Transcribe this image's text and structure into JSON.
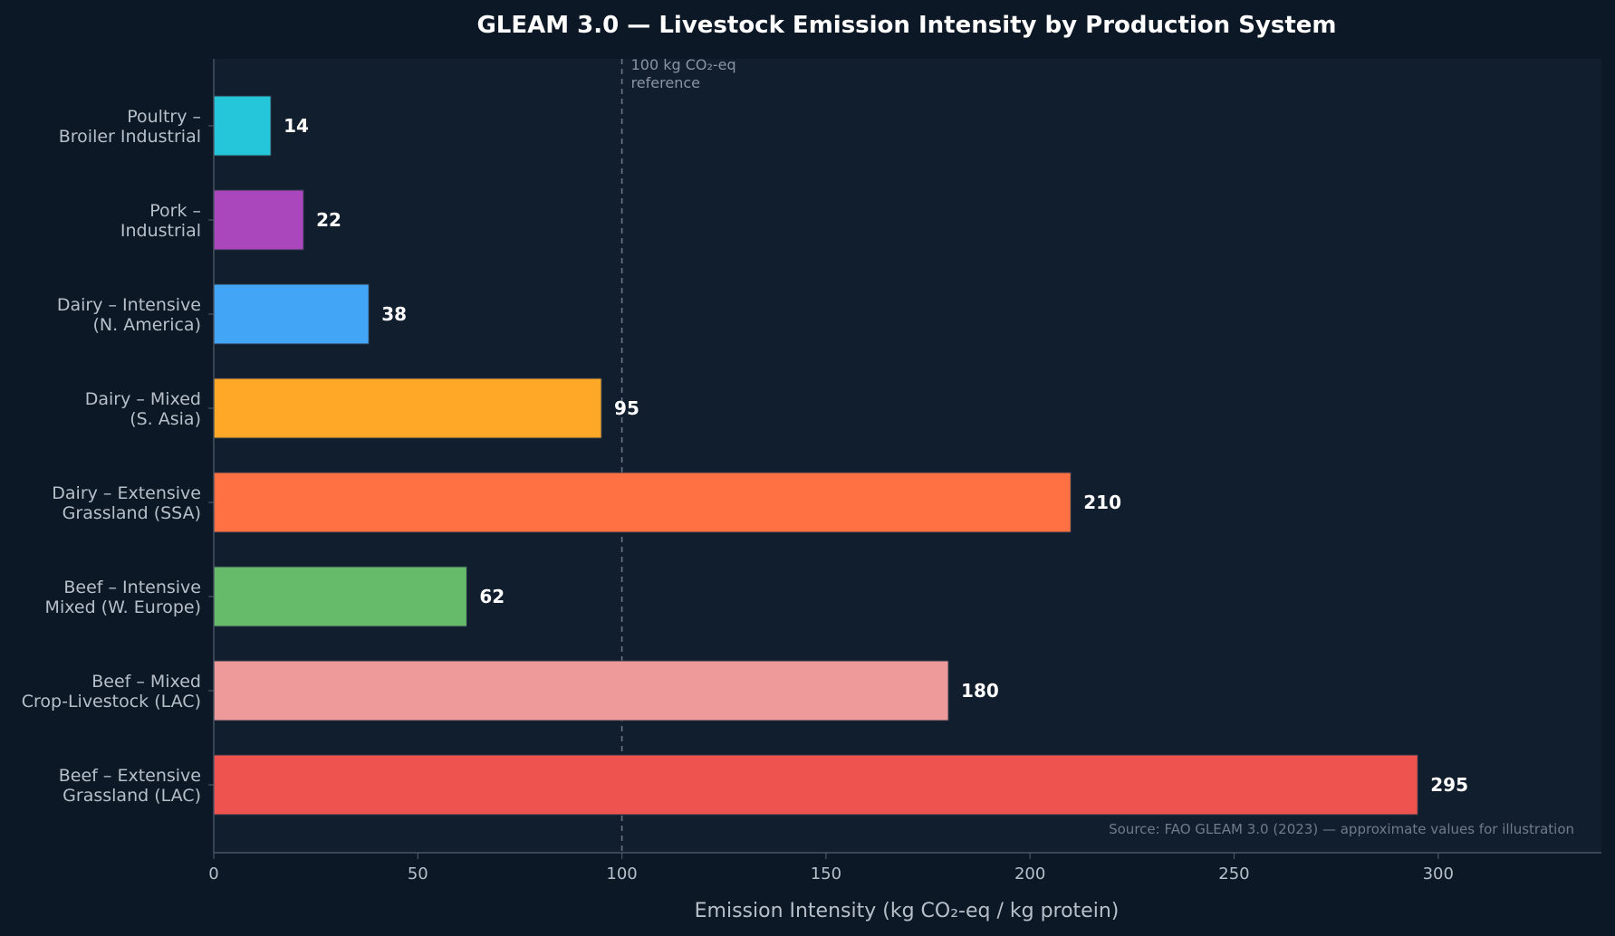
{
  "chart_data": {
    "type": "bar",
    "orientation": "horizontal",
    "title": "GLEAM 3.0 — Livestock Emission Intensity by Production System",
    "xlabel": "Emission Intensity (kg CO₂-eq / kg protein)",
    "ylabel": "",
    "xlim": [
      0,
      340
    ],
    "xticks": [
      0,
      50,
      100,
      150,
      200,
      250,
      300
    ],
    "grid": false,
    "categories": [
      [
        "Poultry –",
        "Broiler Industrial"
      ],
      [
        "Pork –",
        "Industrial"
      ],
      [
        "Dairy – Intensive",
        "(N. America)"
      ],
      [
        "Dairy – Mixed",
        "(S. Asia)"
      ],
      [
        "Dairy – Extensive",
        "Grassland (SSA)"
      ],
      [
        "Beef – Intensive",
        "Mixed (W. Europe)"
      ],
      [
        "Beef – Mixed",
        "Crop-Livestock (LAC)"
      ],
      [
        "Beef – Extensive",
        "Grassland (LAC)"
      ]
    ],
    "values": [
      14,
      22,
      38,
      95,
      210,
      62,
      180,
      295
    ],
    "colors": [
      "#26c6da",
      "#ab47bc",
      "#42a5f5",
      "#ffa726",
      "#ff7043",
      "#66bb6a",
      "#ef9a9a",
      "#ef5350"
    ],
    "reference_line": {
      "value": 100,
      "label": [
        "100 kg CO₂-eq",
        "reference"
      ],
      "color": "#6b7685"
    },
    "annotation": "Source: FAO GLEAM 3.0 (2023) — approximate values for illustration"
  },
  "theme": {
    "background": "#0d1826",
    "plot_background": "#111e2e",
    "axis_color": "#4a5666",
    "text_color": "#b7bfca",
    "title_color": "#ffffff"
  }
}
